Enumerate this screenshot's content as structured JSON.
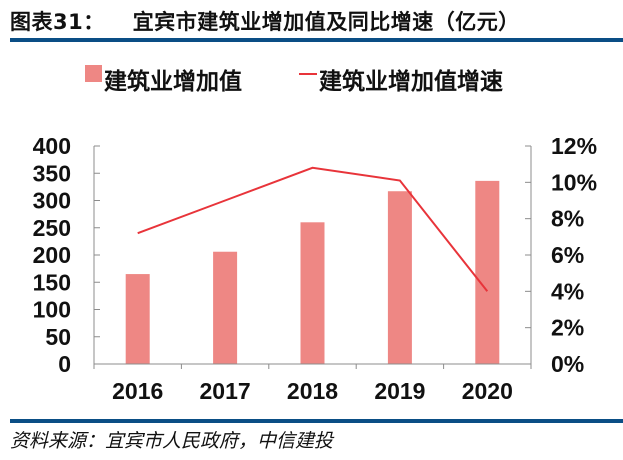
{
  "header": {
    "figure_label": "图表31：",
    "title": "宜宾市建筑业增加值及同比增速（亿元）"
  },
  "footer": {
    "source": "资料来源：宜宾市人民政府，中信建投"
  },
  "colors": {
    "bar": "#ee8784",
    "line": "#e8343a",
    "rule": "#0a4e85",
    "axis": "#8c8c8c"
  },
  "chart_data": {
    "type": "bar+line",
    "title": "宜宾市建筑业增加值及同比增速（亿元）",
    "categories": [
      "2016",
      "2017",
      "2018",
      "2019",
      "2020"
    ],
    "series": [
      {
        "name": "建筑业增加值",
        "type": "bar",
        "axis": "left",
        "values": [
          165,
          206,
          260,
          317,
          336
        ]
      },
      {
        "name": "建筑业增加值增速",
        "type": "line",
        "axis": "right",
        "values": [
          7.2,
          9.0,
          10.8,
          10.1,
          4.0
        ],
        "unit": "%"
      }
    ],
    "left_axis": {
      "min": 0,
      "max": 400,
      "step": 50,
      "ticks": [
        "400",
        "350",
        "300",
        "250",
        "200",
        "150",
        "100",
        "50",
        "0"
      ]
    },
    "right_axis": {
      "min": 0,
      "max": 12,
      "step": 2,
      "ticks": [
        "12%",
        "10%",
        "8%",
        "6%",
        "4%",
        "2%",
        "0%"
      ]
    },
    "xlabel": "",
    "ylabel": "",
    "legend_position": "top",
    "grid": false
  }
}
